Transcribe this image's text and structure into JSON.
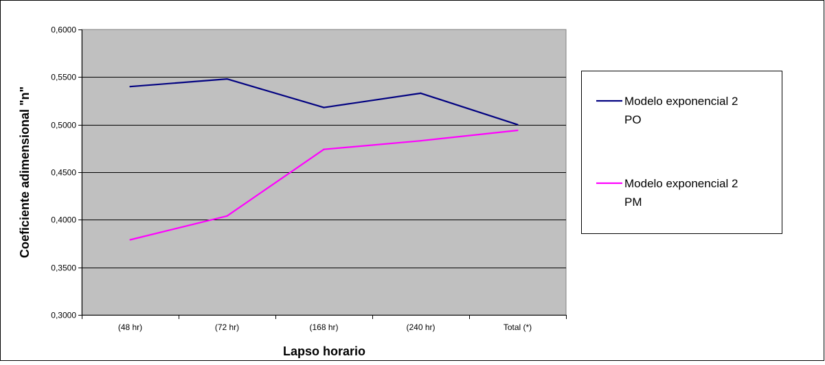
{
  "chart_data": {
    "type": "line",
    "title": "",
    "xlabel": "Lapso horario",
    "ylabel": "Coeficiente adimensional \"n\"",
    "categories": [
      "(48 hr)",
      "(72 hr)",
      "(168 hr)",
      "(240 hr)",
      "Total (*)"
    ],
    "ylim": [
      0.3,
      0.6
    ],
    "yticks": [
      {
        "value": 0.3,
        "label": "0,3000"
      },
      {
        "value": 0.35,
        "label": "0,3500"
      },
      {
        "value": 0.4,
        "label": "0,4000"
      },
      {
        "value": 0.45,
        "label": "0,4500"
      },
      {
        "value": 0.5,
        "label": "0,5000"
      },
      {
        "value": 0.55,
        "label": "0,5500"
      },
      {
        "value": 0.6,
        "label": "0,6000"
      }
    ],
    "grid": true,
    "legend_position": "right",
    "plot_background": "#c0c0c0",
    "series": [
      {
        "name": "Modelo exponencial 2 PO",
        "legend_lines": [
          "Modelo exponencial 2",
          "PO"
        ],
        "color": "#000080",
        "values": [
          0.54,
          0.548,
          0.518,
          0.533,
          0.5
        ]
      },
      {
        "name": "Modelo exponencial 2 PM",
        "legend_lines": [
          "Modelo exponencial 2",
          "PM"
        ],
        "color": "#ff00ff",
        "values": [
          0.379,
          0.404,
          0.474,
          0.483,
          0.494
        ]
      }
    ]
  }
}
